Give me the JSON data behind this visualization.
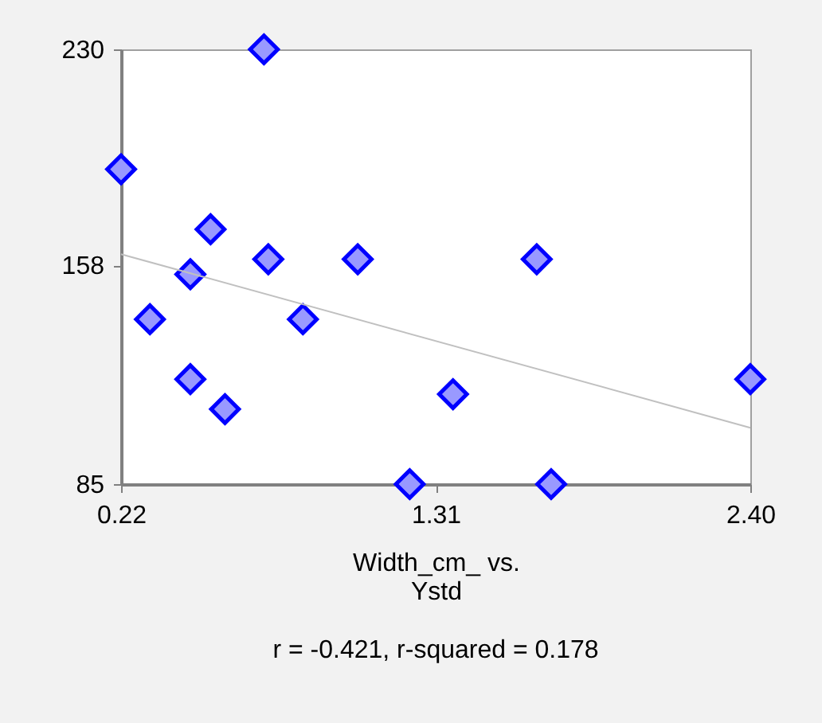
{
  "chart_data": {
    "type": "scatter",
    "xlabel": "Width_cm_ vs.\nYstd",
    "annotations": [
      "r = -0.421,  r-squared = 0.178"
    ],
    "xlim": [
      0.22,
      2.4
    ],
    "xticks": [
      {
        "value": 0.22,
        "label": "0.22"
      },
      {
        "value": 1.31,
        "label": "1.31"
      },
      {
        "value": 2.4,
        "label": "2.40"
      }
    ],
    "ylim": [
      85,
      230
    ],
    "yticks": [
      85,
      158,
      230
    ],
    "grid": false,
    "marker": "diamond",
    "series": [
      {
        "type": "scatter",
        "color": "#9999ff",
        "x": [
          0.22,
          0.715,
          0.53,
          0.73,
          1.04,
          1.66,
          0.46,
          0.32,
          0.85,
          0.46,
          0.58,
          1.37,
          2.4,
          1.22,
          1.71
        ],
        "values": [
          190,
          230,
          170,
          160,
          160,
          160,
          155,
          140,
          140,
          120,
          110,
          115,
          120,
          85,
          85
        ]
      },
      {
        "type": "line",
        "marker": "none",
        "color": "#c0c0c0",
        "x": [
          0.22,
          2.4
        ],
        "values": [
          161.7,
          103.8
        ]
      }
    ]
  }
}
